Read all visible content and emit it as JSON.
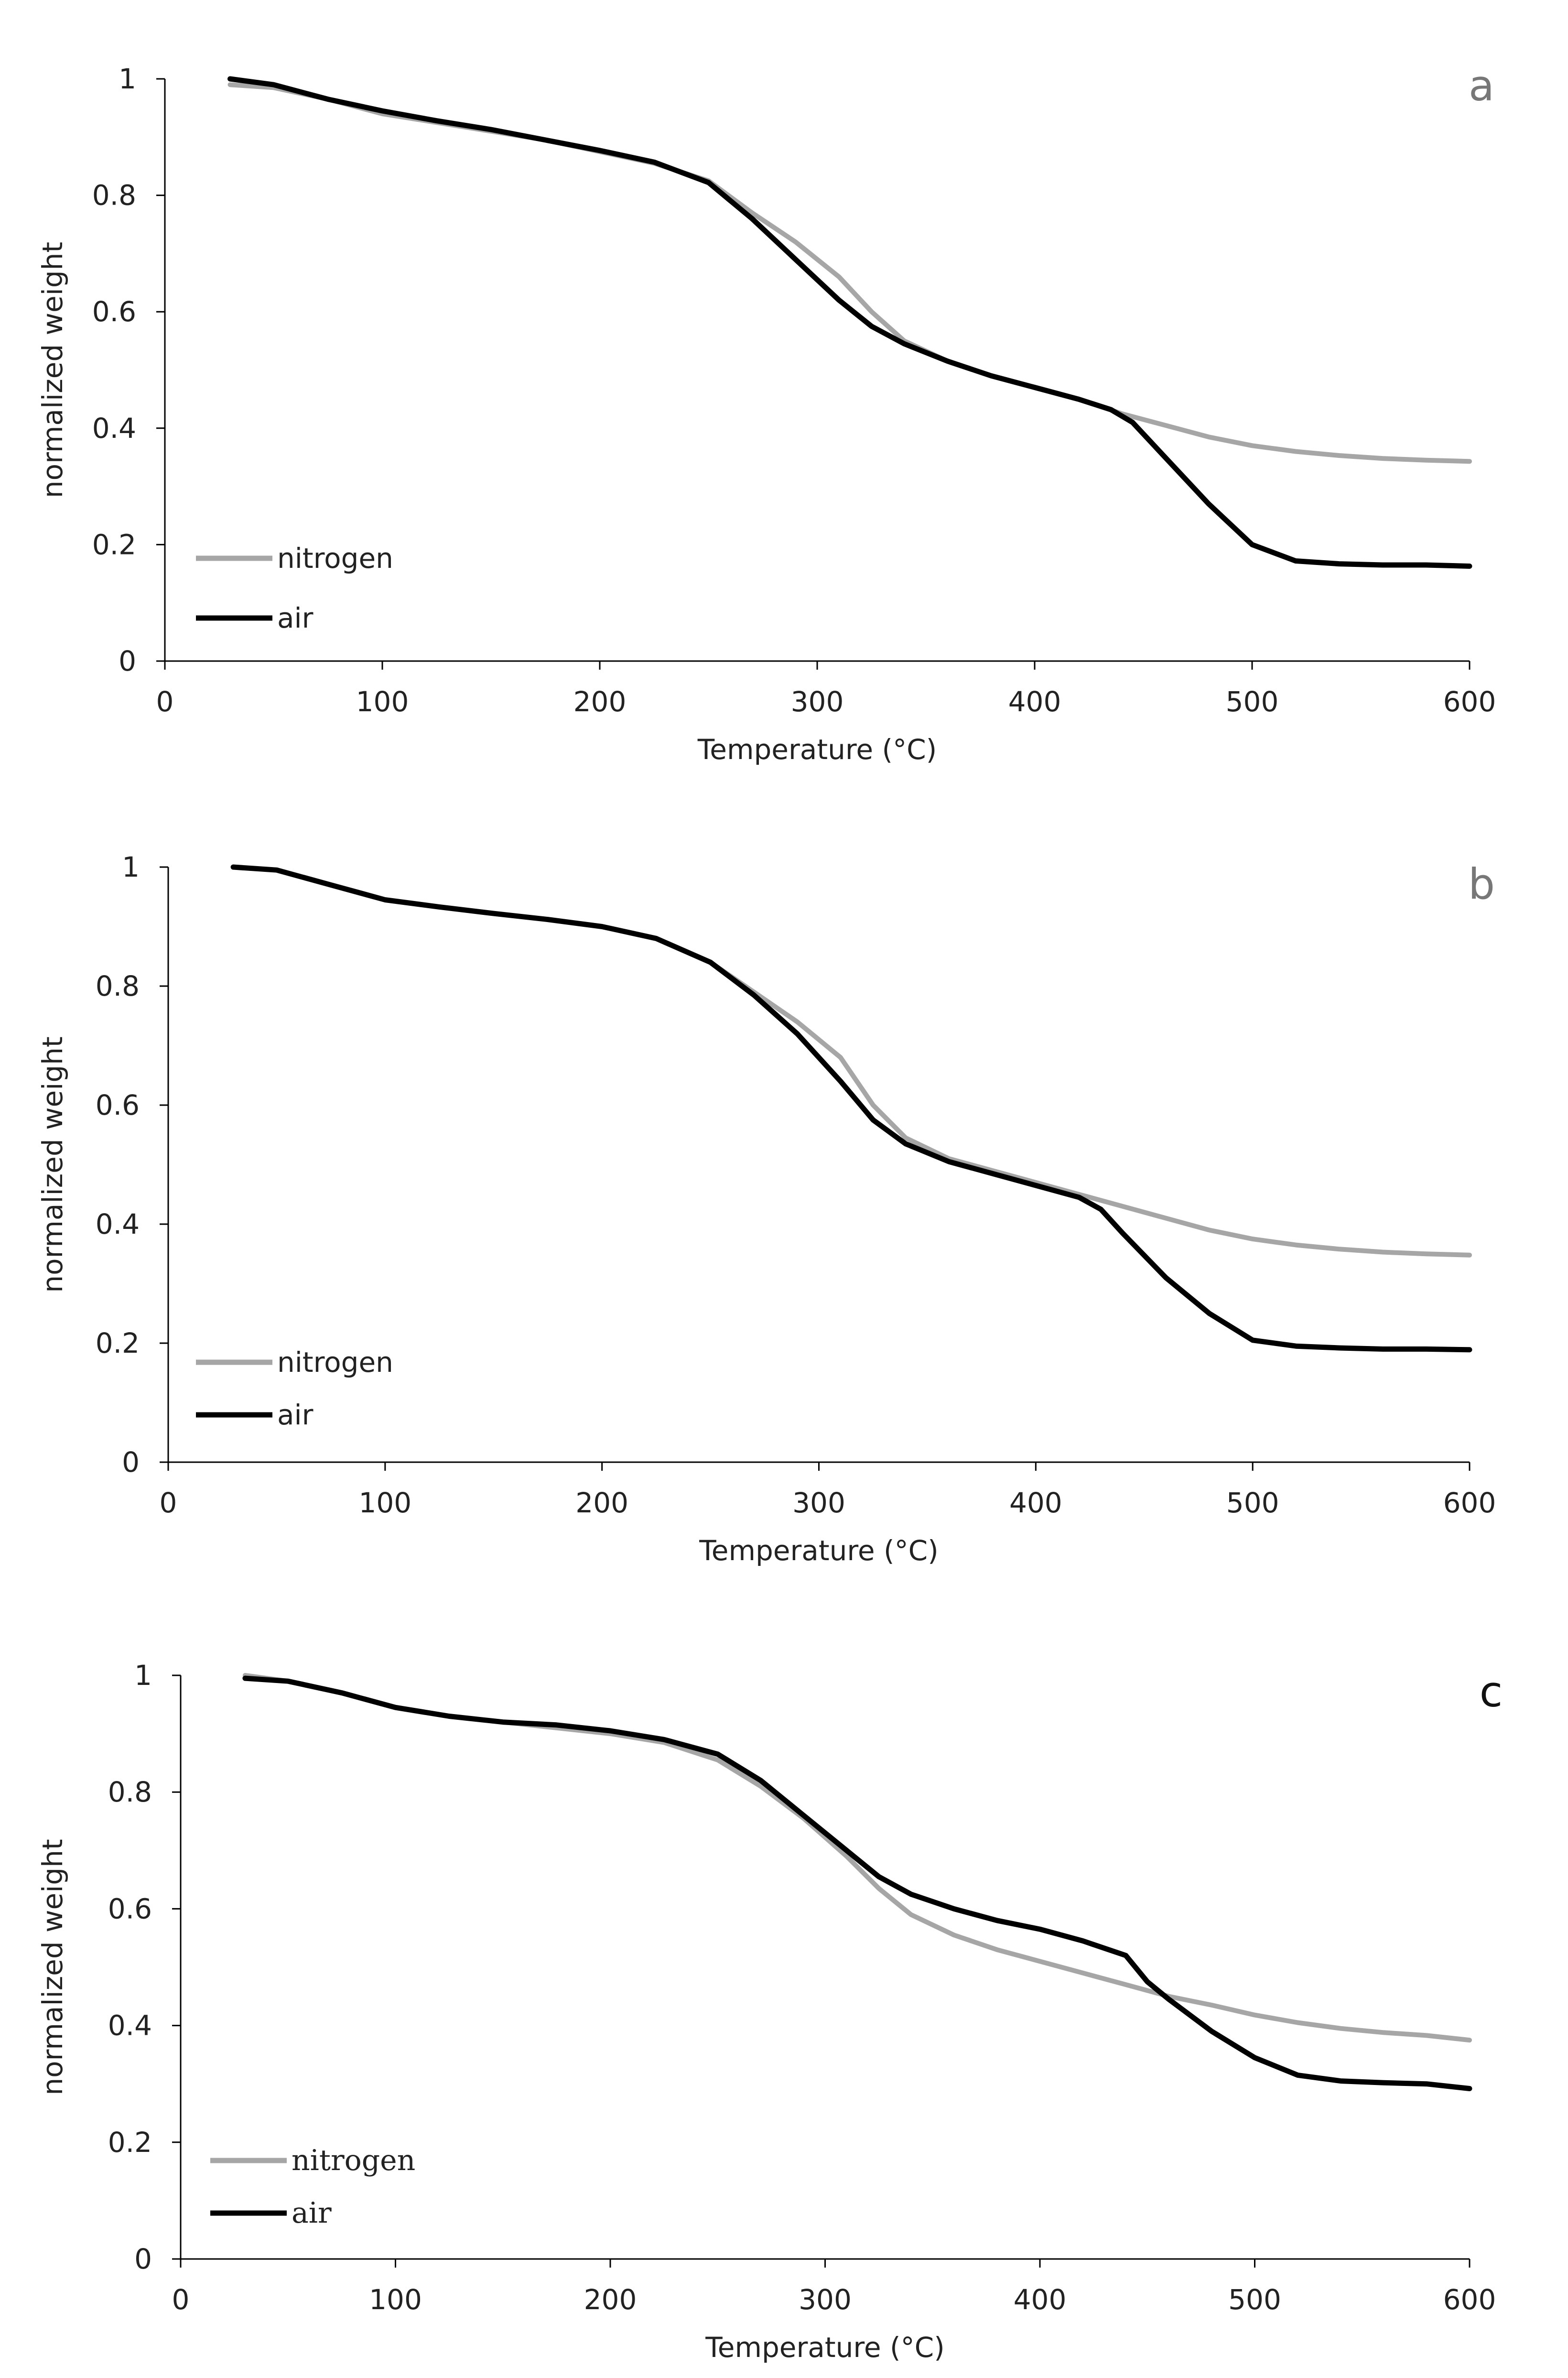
{
  "colors": {
    "nitrogen": "#a6a6a6",
    "air": "#000000",
    "axis": "#000000"
  },
  "chart_data": [
    {
      "type": "line",
      "title": "",
      "panel_label": "a",
      "xlabel": "Temperature (°C)",
      "ylabel": "normalized weight",
      "xlim": [
        0,
        600
      ],
      "ylim": [
        0,
        1
      ],
      "x_ticks": [
        "0",
        "100",
        "200",
        "300",
        "400",
        "500",
        "600"
      ],
      "y_ticks": [
        "0",
        "0.2",
        "0.4",
        "0.6",
        "0.8",
        "1"
      ],
      "grid": false,
      "legend_position": "bottom-left",
      "series": [
        {
          "name": "nitrogen",
          "x": [
            30,
            50,
            75,
            100,
            125,
            150,
            175,
            200,
            225,
            250,
            270,
            290,
            310,
            325,
            340,
            360,
            380,
            400,
            420,
            440,
            460,
            480,
            500,
            520,
            540,
            560,
            580,
            600
          ],
          "y": [
            0.99,
            0.985,
            0.965,
            0.94,
            0.925,
            0.91,
            0.895,
            0.875,
            0.855,
            0.825,
            0.77,
            0.72,
            0.66,
            0.6,
            0.55,
            0.515,
            0.49,
            0.47,
            0.45,
            0.425,
            0.405,
            0.385,
            0.37,
            0.36,
            0.353,
            0.348,
            0.345,
            0.343
          ]
        },
        {
          "name": "air",
          "x": [
            30,
            50,
            75,
            100,
            125,
            150,
            175,
            200,
            225,
            250,
            270,
            290,
            310,
            325,
            340,
            360,
            380,
            400,
            420,
            435,
            445,
            460,
            480,
            500,
            520,
            540,
            560,
            580,
            600
          ],
          "y": [
            1.0,
            0.99,
            0.965,
            0.945,
            0.928,
            0.913,
            0.895,
            0.877,
            0.857,
            0.822,
            0.76,
            0.69,
            0.62,
            0.575,
            0.545,
            0.515,
            0.49,
            0.47,
            0.45,
            0.432,
            0.41,
            0.35,
            0.27,
            0.2,
            0.172,
            0.167,
            0.165,
            0.165,
            0.163
          ]
        }
      ]
    },
    {
      "type": "line",
      "title": "",
      "panel_label": "b",
      "xlabel": "Temperature (°C)",
      "ylabel": "normalized weight",
      "xlim": [
        0,
        600
      ],
      "ylim": [
        0,
        1
      ],
      "x_ticks": [
        "0",
        "100",
        "200",
        "300",
        "400",
        "500",
        "600"
      ],
      "y_ticks": [
        "0",
        "0.2",
        "0.4",
        "0.6",
        "0.8",
        "1"
      ],
      "grid": false,
      "legend_position": "bottom-left",
      "series": [
        {
          "name": "nitrogen",
          "x": [
            30,
            50,
            75,
            100,
            125,
            150,
            175,
            200,
            225,
            250,
            270,
            290,
            310,
            325,
            340,
            360,
            380,
            400,
            420,
            440,
            460,
            480,
            500,
            520,
            540,
            560,
            580,
            600
          ],
          "y": [
            1.0,
            0.995,
            0.97,
            0.945,
            0.933,
            0.922,
            0.912,
            0.9,
            0.88,
            0.84,
            0.79,
            0.74,
            0.68,
            0.6,
            0.545,
            0.51,
            0.49,
            0.47,
            0.45,
            0.43,
            0.41,
            0.39,
            0.375,
            0.365,
            0.358,
            0.353,
            0.35,
            0.348
          ]
        },
        {
          "name": "air",
          "x": [
            30,
            50,
            75,
            100,
            125,
            150,
            175,
            200,
            225,
            250,
            270,
            290,
            310,
            325,
            340,
            360,
            380,
            400,
            420,
            430,
            440,
            460,
            480,
            500,
            520,
            540,
            560,
            580,
            600
          ],
          "y": [
            1.0,
            0.995,
            0.97,
            0.945,
            0.933,
            0.922,
            0.912,
            0.9,
            0.88,
            0.84,
            0.785,
            0.72,
            0.64,
            0.575,
            0.535,
            0.505,
            0.485,
            0.465,
            0.445,
            0.425,
            0.385,
            0.31,
            0.25,
            0.205,
            0.195,
            0.192,
            0.19,
            0.19,
            0.189
          ]
        }
      ]
    },
    {
      "type": "line",
      "title": "",
      "panel_label": "c",
      "xlabel": "Temperature (°C)",
      "ylabel": "normalized weight",
      "xlim": [
        0,
        600
      ],
      "ylim": [
        0,
        1
      ],
      "x_ticks": [
        "0",
        "100",
        "200",
        "300",
        "400",
        "500",
        "600"
      ],
      "y_ticks": [
        "0",
        "0.2",
        "0.4",
        "0.6",
        "0.8",
        "1"
      ],
      "grid": false,
      "legend_position": "bottom-left",
      "series": [
        {
          "name": "nitrogen",
          "x": [
            30,
            50,
            75,
            100,
            125,
            150,
            175,
            200,
            225,
            250,
            270,
            290,
            310,
            325,
            340,
            360,
            380,
            400,
            420,
            440,
            460,
            480,
            500,
            520,
            540,
            560,
            580,
            600
          ],
          "y": [
            1.0,
            0.99,
            0.97,
            0.945,
            0.93,
            0.92,
            0.91,
            0.9,
            0.885,
            0.855,
            0.81,
            0.755,
            0.69,
            0.635,
            0.59,
            0.555,
            0.53,
            0.51,
            0.49,
            0.47,
            0.45,
            0.435,
            0.418,
            0.405,
            0.395,
            0.388,
            0.383,
            0.375
          ]
        },
        {
          "name": "air",
          "x": [
            30,
            50,
            75,
            100,
            125,
            150,
            175,
            200,
            225,
            250,
            270,
            290,
            310,
            325,
            340,
            360,
            380,
            400,
            420,
            440,
            450,
            460,
            480,
            500,
            520,
            540,
            560,
            580,
            600
          ],
          "y": [
            0.995,
            0.99,
            0.97,
            0.945,
            0.93,
            0.92,
            0.915,
            0.905,
            0.89,
            0.865,
            0.82,
            0.76,
            0.7,
            0.655,
            0.625,
            0.6,
            0.58,
            0.565,
            0.545,
            0.52,
            0.475,
            0.445,
            0.39,
            0.345,
            0.315,
            0.305,
            0.302,
            0.3,
            0.292
          ]
        }
      ]
    }
  ]
}
